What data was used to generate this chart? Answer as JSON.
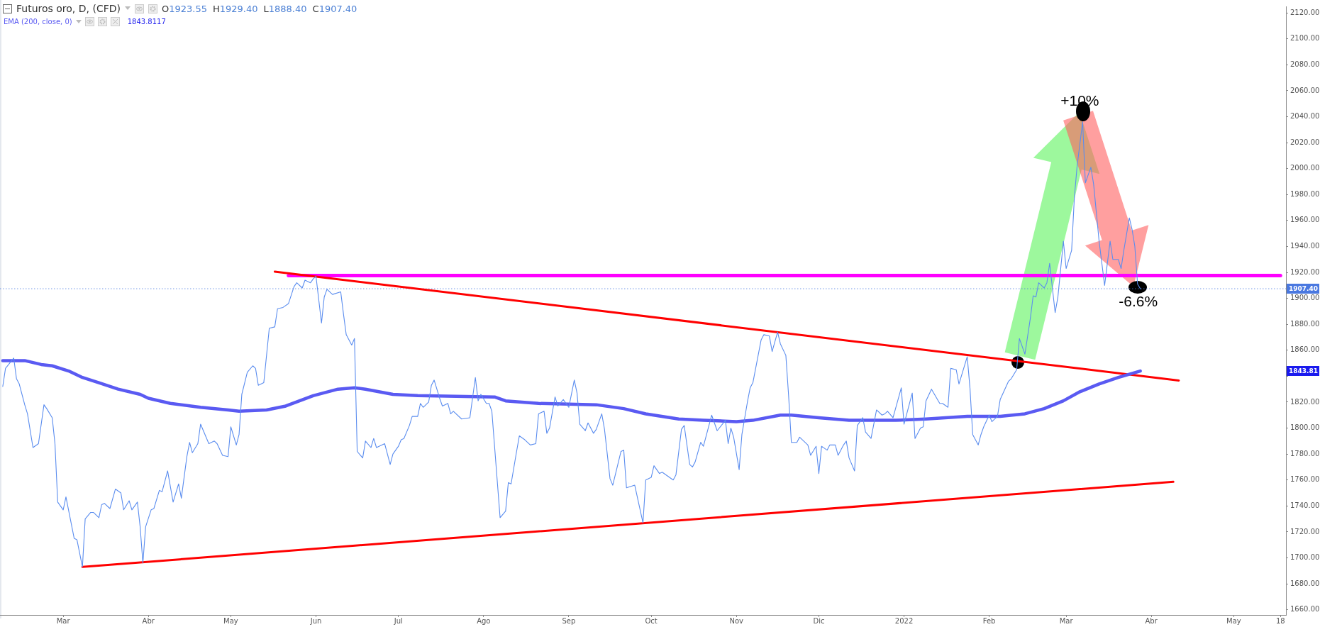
{
  "chart_data": {
    "type": "line",
    "title": "Futuros oro, D, (CFD)",
    "subtitle": "O1923.55 H1929.40 L1888.40 C1907.40",
    "legend": "top left",
    "annotations": [
      "1843.8117",
      {
        "text": "+10%",
        "x": "2022-03-07",
        "y": 2036
      },
      {
        "text": "-6.6%",
        "x": "2022-03-28",
        "y": 1907.4
      },
      "1843.81"
    ],
    "xlim": [
      "2021-02-06",
      "2022-05-20"
    ],
    "xticks": [
      {
        "value": "2021-03-01",
        "label": "Mar"
      },
      {
        "value": "2021-04-01",
        "label": "Abr"
      },
      {
        "value": "2021-05-01",
        "label": "May"
      },
      {
        "value": "2021-06-01",
        "label": "Jun"
      },
      {
        "value": "2021-07-01",
        "label": "Jul"
      },
      {
        "value": "2021-08-01",
        "label": "Ago"
      },
      {
        "value": "2021-09-01",
        "label": "Sep"
      },
      {
        "value": "2021-10-01",
        "label": "Oct"
      },
      {
        "value": "2021-11-01",
        "label": "Nov"
      },
      {
        "value": "2021-12-01",
        "label": "Dic"
      },
      {
        "value": "2022-01-01",
        "label": "2022"
      },
      {
        "value": "2022-02-01",
        "label": "Feb"
      },
      {
        "value": "2022-03-01",
        "label": "Mar"
      },
      {
        "value": "2022-04-01",
        "label": "Abr"
      },
      {
        "value": "2022-05-01",
        "label": "May"
      },
      {
        "value": "2022-05-18",
        "label": "18"
      }
    ],
    "ylim": [
      1656,
      2125
    ],
    "yticks": [
      {
        "value": 1660,
        "label": "1660.00"
      },
      {
        "value": 1680,
        "label": "1680.00"
      },
      {
        "value": 1700,
        "label": "1700.00"
      },
      {
        "value": 1720,
        "label": "1720.00"
      },
      {
        "value": 1740,
        "label": "1740.00"
      },
      {
        "value": 1760,
        "label": "1760.00"
      },
      {
        "value": 1780,
        "label": "1780.00"
      },
      {
        "value": 1800,
        "label": "1800.00"
      },
      {
        "value": 1820,
        "label": "1820.00"
      },
      {
        "value": 1840,
        "label": null
      },
      {
        "value": 1860,
        "label": "1860.00"
      },
      {
        "value": 1880,
        "label": "1880.00"
      },
      {
        "value": 1900,
        "label": "1900.00"
      },
      {
        "value": 1920,
        "label": "1920.00"
      },
      {
        "value": 1940,
        "label": "1940.00"
      },
      {
        "value": 1960,
        "label": "1960.00"
      },
      {
        "value": 1980,
        "label": "1980.00"
      },
      {
        "value": 2000,
        "label": "2000.00"
      },
      {
        "value": 2020,
        "label": "2020.00"
      },
      {
        "value": 2040,
        "label": "2040.00"
      },
      {
        "value": 2060,
        "label": "2060.00"
      },
      {
        "value": 2080,
        "label": "2080.00"
      },
      {
        "value": 2100,
        "label": "2100.00"
      },
      {
        "value": 2120,
        "label": "2120.00"
      }
    ],
    "ref_lines": [
      {
        "axis": "y",
        "value": 1907.4,
        "label": "1907.40",
        "color": "#4a78e0",
        "line_style": "dotted"
      }
    ],
    "series": [
      {
        "color": "#5b8def",
        "x": [
          "2021-02-07",
          "2021-02-08",
          "2021-02-11",
          "2021-02-12",
          "2021-02-13",
          "2021-02-15",
          "2021-02-16",
          "2021-02-18",
          "2021-02-20",
          "2021-02-22",
          "2021-02-23",
          "2021-02-25",
          "2021-02-26",
          "2021-02-27",
          "2021-03-01",
          "2021-03-02",
          "2021-03-05",
          "2021-03-06",
          "2021-03-08",
          "2021-03-09",
          "2021-03-11",
          "2021-03-12",
          "2021-03-14",
          "2021-03-15",
          "2021-03-16",
          "2021-03-18",
          "2021-03-20",
          "2021-03-22",
          "2021-03-23",
          "2021-03-25",
          "2021-03-26",
          "2021-03-28",
          "2021-03-29",
          "2021-03-30",
          "2021-03-31",
          "2021-04-02",
          "2021-04-03",
          "2021-04-05",
          "2021-04-06",
          "2021-04-08",
          "2021-04-10",
          "2021-04-12",
          "2021-04-13",
          "2021-04-15",
          "2021-04-16",
          "2021-04-17",
          "2021-04-19",
          "2021-04-20",
          "2021-04-23",
          "2021-04-25",
          "2021-04-26",
          "2021-04-28",
          "2021-04-30",
          "2021-05-01",
          "2021-05-03",
          "2021-05-04",
          "2021-05-05",
          "2021-05-07",
          "2021-05-09",
          "2021-05-10",
          "2021-05-11",
          "2021-05-13",
          "2021-05-15",
          "2021-05-17",
          "2021-05-18",
          "2021-05-20",
          "2021-05-22",
          "2021-05-24",
          "2021-05-25",
          "2021-05-27",
          "2021-05-28",
          "2021-05-30",
          "2021-05-31",
          "2021-06-01",
          "2021-06-03",
          "2021-06-04",
          "2021-06-05",
          "2021-06-07",
          "2021-06-10",
          "2021-06-11",
          "2021-06-12",
          "2021-06-14",
          "2021-06-15",
          "2021-06-16",
          "2021-06-18",
          "2021-06-19",
          "2021-06-21",
          "2021-06-22",
          "2021-06-23",
          "2021-06-26",
          "2021-06-28",
          "2021-06-29",
          "2021-07-01",
          "2021-07-02",
          "2021-07-03",
          "2021-07-05",
          "2021-07-06",
          "2021-07-08",
          "2021-07-09",
          "2021-07-10",
          "2021-07-12",
          "2021-07-13",
          "2021-07-14",
          "2021-07-16",
          "2021-07-17",
          "2021-07-19",
          "2021-07-20",
          "2021-07-21",
          "2021-07-24",
          "2021-07-27",
          "2021-07-29",
          "2021-07-30",
          "2021-07-31",
          "2021-08-02",
          "2021-08-03",
          "2021-08-04",
          "2021-08-07",
          "2021-08-09",
          "2021-08-10",
          "2021-08-11",
          "2021-08-13",
          "2021-08-14",
          "2021-08-16",
          "2021-08-18",
          "2021-08-20",
          "2021-08-21",
          "2021-08-23",
          "2021-08-24",
          "2021-08-25",
          "2021-08-27",
          "2021-08-28",
          "2021-08-30",
          "2021-09-01",
          "2021-09-03",
          "2021-09-04",
          "2021-09-05",
          "2021-09-07",
          "2021-09-08",
          "2021-09-10",
          "2021-09-11",
          "2021-09-13",
          "2021-09-14",
          "2021-09-16",
          "2021-09-17",
          "2021-09-20",
          "2021-09-21",
          "2021-09-22",
          "2021-09-25",
          "2021-09-28",
          "2021-09-29",
          "2021-10-01",
          "2021-10-02",
          "2021-10-04",
          "2021-10-05",
          "2021-10-09",
          "2021-10-10",
          "2021-10-12",
          "2021-10-13",
          "2021-10-15",
          "2021-10-16",
          "2021-10-17",
          "2021-10-19",
          "2021-10-20",
          "2021-10-23",
          "2021-10-25",
          "2021-10-28",
          "2021-10-29",
          "2021-10-30",
          "2021-10-31",
          "2021-11-02",
          "2021-11-03",
          "2021-11-05",
          "2021-11-06",
          "2021-11-07",
          "2021-11-10",
          "2021-11-11",
          "2021-11-13",
          "2021-11-14",
          "2021-11-16",
          "2021-11-17",
          "2021-11-19",
          "2021-11-20",
          "2021-11-21",
          "2021-11-23",
          "2021-11-24",
          "2021-11-27",
          "2021-11-28",
          "2021-11-30",
          "2021-12-01",
          "2021-12-02",
          "2021-12-04",
          "2021-12-05",
          "2021-12-07",
          "2021-12-08",
          "2021-12-10",
          "2021-12-11",
          "2021-12-12",
          "2021-12-14",
          "2021-12-15",
          "2021-12-17",
          "2021-12-18",
          "2021-12-20",
          "2021-12-22",
          "2021-12-24",
          "2021-12-25",
          "2021-12-26",
          "2021-12-28",
          "2021-12-31",
          "2022-01-01",
          "2022-01-04",
          "2022-01-05",
          "2022-01-07",
          "2022-01-08",
          "2022-01-09",
          "2022-01-11",
          "2022-01-14",
          "2022-01-15",
          "2022-01-17",
          "2022-01-18",
          "2022-01-20",
          "2022-01-21",
          "2022-01-24",
          "2022-01-25",
          "2022-01-26",
          "2022-01-28",
          "2022-01-29",
          "2022-01-30",
          "2022-02-01",
          "2022-02-02",
          "2022-02-04",
          "2022-02-05",
          "2022-02-08",
          "2022-02-09",
          "2022-02-11",
          "2022-02-12",
          "2022-02-14",
          "2022-02-16",
          "2022-02-17",
          "2022-02-18",
          "2022-02-19",
          "2022-02-21",
          "2022-02-22",
          "2022-02-23",
          "2022-02-25",
          "2022-02-26",
          "2022-02-28",
          "2022-03-01",
          "2022-03-03",
          "2022-03-04",
          "2022-03-05",
          "2022-03-07",
          "2022-03-08",
          "2022-03-10",
          "2022-03-11",
          "2022-03-12",
          "2022-03-13",
          "2022-03-15",
          "2022-03-17",
          "2022-03-18",
          "2022-03-20",
          "2022-03-21",
          "2022-03-22",
          "2022-03-24",
          "2022-03-25",
          "2022-03-26",
          "2022-03-27",
          "2022-03-28"
        ],
        "values": [
          1832,
          1846,
          1854,
          1838,
          1834,
          1818,
          1811,
          1785,
          1788,
          1818,
          1815,
          1808,
          1788,
          1743,
          1737,
          1747,
          1715,
          1714,
          1693,
          1730,
          1735,
          1735,
          1731,
          1741,
          1742,
          1738,
          1753,
          1750,
          1737,
          1744,
          1737,
          1743,
          1724,
          1696,
          1724,
          1737,
          1738,
          1752,
          1751,
          1767,
          1743,
          1757,
          1746,
          1778,
          1789,
          1781,
          1788,
          1803,
          1788,
          1790,
          1788,
          1779,
          1778,
          1801,
          1787,
          1795,
          1826,
          1843,
          1848,
          1846,
          1833,
          1835,
          1877,
          1878,
          1892,
          1893,
          1896,
          1909,
          1912,
          1908,
          1914,
          1912,
          1915,
          1917,
          1881,
          1901,
          1907,
          1903,
          1905,
          1888,
          1872,
          1864,
          1869,
          1782,
          1777,
          1790,
          1785,
          1792,
          1785,
          1788,
          1772,
          1780,
          1786,
          1791,
          1792,
          1802,
          1809,
          1809,
          1819,
          1816,
          1820,
          1833,
          1837,
          1823,
          1817,
          1819,
          1811,
          1813,
          1807,
          1808,
          1839,
          1821,
          1826,
          1819,
          1819,
          1813,
          1731,
          1736,
          1758,
          1757,
          1782,
          1794,
          1791,
          1787,
          1788,
          1811,
          1813,
          1796,
          1800,
          1824,
          1817,
          1822,
          1816,
          1837,
          1827,
          1803,
          1798,
          1804,
          1796,
          1799,
          1811,
          1799,
          1761,
          1756,
          1782,
          1783,
          1754,
          1756,
          1727,
          1760,
          1762,
          1771,
          1765,
          1766,
          1760,
          1764,
          1799,
          1802,
          1772,
          1770,
          1774,
          1789,
          1786,
          1810,
          1798,
          1806,
          1788,
          1800,
          1793,
          1768,
          1795,
          1820,
          1831,
          1835,
          1868,
          1872,
          1871,
          1859,
          1874,
          1865,
          1856,
          1825,
          1789,
          1789,
          1793,
          1787,
          1779,
          1786,
          1765,
          1786,
          1783,
          1787,
          1787,
          1779,
          1787,
          1790,
          1777,
          1767,
          1802,
          1808,
          1797,
          1792,
          1814,
          1810,
          1811,
          1813,
          1808,
          1831,
          1803,
          1827,
          1792,
          1800,
          1801,
          1821,
          1830,
          1819,
          1819,
          1816,
          1846,
          1845,
          1834,
          1855,
          1831,
          1795,
          1787,
          1795,
          1801,
          1810,
          1805,
          1809,
          1822,
          1836,
          1838,
          1845,
          1869,
          1857,
          1885,
          1902,
          1901,
          1912,
          1908,
          1912,
          1927,
          1889,
          1901,
          1944,
          1923,
          1937,
          1978,
          2002,
          2036,
          1989,
          2001,
          1988,
          1966,
          1944,
          1910,
          1944,
          1930,
          1930,
          1923,
          1937,
          1962,
          1953,
          1940,
          1911,
          1907.4
        ]
      },
      {
        "name": "EMA (200, close, 0)",
        "color": "#5a5af2",
        "x": [
          "2021-02-07",
          "2021-02-15",
          "2021-02-21",
          "2021-02-25",
          "2021-03-03",
          "2021-03-08",
          "2021-03-14",
          "2021-03-21",
          "2021-03-29",
          "2021-04-01",
          "2021-04-09",
          "2021-04-20",
          "2021-04-30",
          "2021-05-04",
          "2021-05-14",
          "2021-05-21",
          "2021-05-31",
          "2021-06-09",
          "2021-06-15",
          "2021-06-19",
          "2021-06-29",
          "2021-07-08",
          "2021-08-05",
          "2021-08-09",
          "2021-08-21",
          "2021-09-11",
          "2021-09-21",
          "2021-09-29",
          "2021-10-11",
          "2021-10-20",
          "2021-11-01",
          "2021-11-07",
          "2021-11-17",
          "2021-11-21",
          "2021-12-01",
          "2021-12-12",
          "2021-12-29",
          "2022-01-09",
          "2022-01-24",
          "2022-02-05",
          "2022-02-14",
          "2022-02-21",
          "2022-02-28",
          "2022-03-06",
          "2022-03-13",
          "2022-03-20",
          "2022-03-28"
        ],
        "values": [
          1852,
          1852,
          1849,
          1848,
          1844,
          1839,
          1835,
          1830,
          1826,
          1823,
          1819,
          1816,
          1814,
          1813,
          1814,
          1817,
          1825,
          1830,
          1831,
          1830,
          1826,
          1825,
          1824,
          1821,
          1819,
          1818,
          1815,
          1811,
          1807,
          1806,
          1805,
          1806,
          1810,
          1810,
          1808,
          1806,
          1806,
          1807,
          1809,
          1809,
          1811,
          1815,
          1821,
          1828,
          1834,
          1839,
          1844
        ]
      },
      {
        "color": "#ff0000",
        "x": [
          "2021-05-17",
          "2022-04-11"
        ],
        "values": [
          1920.6,
          1836.7
        ]
      },
      {
        "color": "#ff0000",
        "x": [
          "2021-03-08",
          "2022-04-09"
        ],
        "values": [
          1693,
          1758.6
        ]
      },
      {
        "color": "#ff00ff",
        "x": [
          "2021-05-22",
          "2022-05-18"
        ],
        "values": [
          1917.5,
          1917.5
        ]
      }
    ]
  }
}
